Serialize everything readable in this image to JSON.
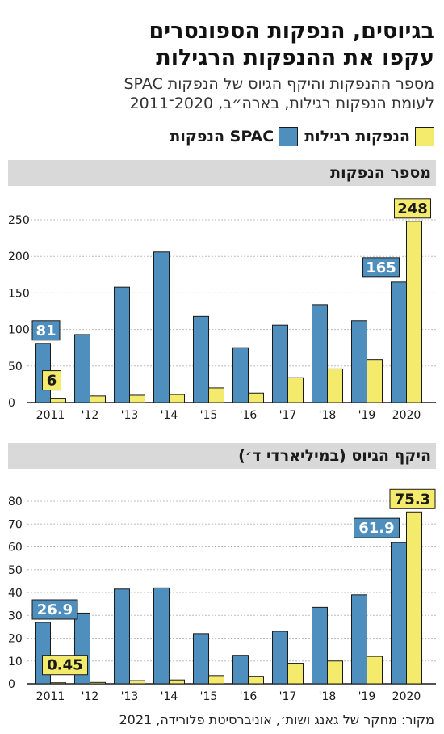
{
  "headline": {
    "line1": "בגיוסים, הנפקות הספונסרים",
    "line2": "עקפו את ההנפקות הרגילות"
  },
  "subtitle": {
    "line1": "מספר ההנפקות והיקף הגיוס של הנפקות SPAC",
    "line2": "לעומת הנפקות רגילות, בארה״ב, 2020־2011"
  },
  "legend": {
    "spac_label": "הנפקות SPAC",
    "regular_label": "הנפקות רגילות"
  },
  "colors": {
    "spac": "#4f8fbe",
    "regular": "#f4ea6c",
    "outline": "#1a1a1a",
    "section_bar": "#d9d9d9"
  },
  "source": "מקור: מחקר של גאנג ושות׳, אוניברסיטת פלורידה, 2021",
  "chart_data": [
    {
      "type": "bar",
      "title": "מספר הנפקות",
      "categories": [
        "2011",
        "'12",
        "'13",
        "'14",
        "'15",
        "'16",
        "'17",
        "'18",
        "'19",
        "2020"
      ],
      "series": [
        {
          "name": "הנפקות SPAC",
          "values": [
            81,
            93,
            158,
            206,
            118,
            75,
            106,
            134,
            112,
            165
          ]
        },
        {
          "name": "הנפקות רגילות",
          "values": [
            6,
            9,
            10,
            11,
            20,
            13,
            34,
            46,
            59,
            248
          ]
        }
      ],
      "ylim": [
        0,
        250
      ],
      "yticks": [
        0,
        50,
        100,
        150,
        200,
        250
      ],
      "callouts": [
        {
          "series": 0,
          "index": 0,
          "label": "81"
        },
        {
          "series": 1,
          "index": 0,
          "label": "6"
        },
        {
          "series": 0,
          "index": 9,
          "label": "165"
        },
        {
          "series": 1,
          "index": 9,
          "label": "248"
        }
      ]
    },
    {
      "type": "bar",
      "title": "היקף הגיוס (במיליארדי ד׳)",
      "categories": [
        "2011",
        "'12",
        "'13",
        "'14",
        "'15",
        "'16",
        "'17",
        "'18",
        "'19",
        "2020"
      ],
      "series": [
        {
          "name": "הנפקות SPAC",
          "values": [
            26.9,
            31,
            41.5,
            42,
            22,
            12.5,
            23,
            33.5,
            39,
            61.9
          ]
        },
        {
          "name": "הנפקות רגילות",
          "values": [
            0.45,
            0.6,
            1.4,
            1.7,
            3.6,
            3.3,
            9,
            10,
            12,
            75.3
          ]
        }
      ],
      "ylim": [
        0,
        80
      ],
      "yticks": [
        0,
        10,
        20,
        30,
        40,
        50,
        60,
        70,
        80
      ],
      "callouts": [
        {
          "series": 0,
          "index": 0,
          "label": "26.9"
        },
        {
          "series": 1,
          "index": 0,
          "label": "0.45"
        },
        {
          "series": 0,
          "index": 9,
          "label": "61.9"
        },
        {
          "series": 1,
          "index": 9,
          "label": "75.3"
        }
      ]
    }
  ]
}
